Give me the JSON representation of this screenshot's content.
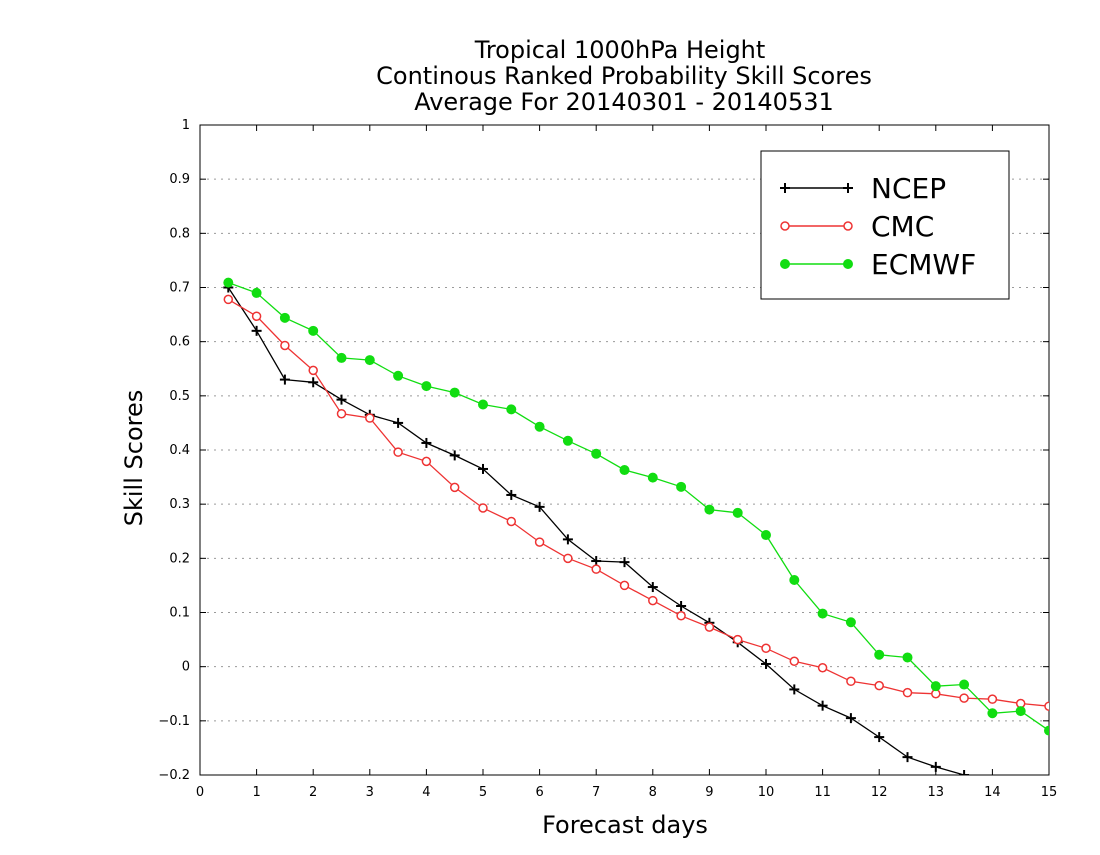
{
  "chart_data": {
    "type": "line",
    "title": [
      "Tropical 1000hPa Height",
      "Continous Ranked Probability Skill Scores",
      "Average For 20140301 - 20140531"
    ],
    "xlabel": "Forecast days",
    "ylabel": "Skill Scores",
    "xlim": [
      0,
      15
    ],
    "ylim": [
      -0.2,
      1
    ],
    "x_ticks": [
      "0",
      "1",
      "2",
      "3",
      "4",
      "5",
      "6",
      "7",
      "8",
      "9",
      "10",
      "11",
      "12",
      "13",
      "14",
      "15"
    ],
    "y_ticks": [
      "−0.2",
      "−0.1",
      "0",
      "0.1",
      "0.2",
      "0.3",
      "0.4",
      "0.5",
      "0.6",
      "0.7",
      "0.8",
      "0.9",
      "1"
    ],
    "grid": "horizontal dotted",
    "legend_position": "top-right",
    "series": [
      {
        "name": "NCEP",
        "color": "#000000",
        "marker": "plus",
        "x": [
          0.5,
          1,
          1.5,
          2,
          2.5,
          3,
          3.5,
          4,
          4.5,
          5,
          5.5,
          6,
          6.5,
          7,
          7.5,
          8,
          8.5,
          9,
          9.5,
          10,
          10.5,
          11,
          11.5,
          12,
          12.5,
          13,
          13.5
        ],
        "y": [
          0.7,
          0.62,
          0.53,
          0.525,
          0.493,
          0.465,
          0.45,
          0.413,
          0.39,
          0.365,
          0.317,
          0.295,
          0.235,
          0.195,
          0.193,
          0.147,
          0.112,
          0.081,
          0.045,
          0.005,
          -0.042,
          -0.072,
          -0.095,
          -0.13,
          -0.167,
          -0.185,
          -0.2
        ]
      },
      {
        "name": "CMC",
        "color": "#ee3333",
        "marker": "open-circle",
        "x": [
          0.5,
          1,
          1.5,
          2,
          2.5,
          3,
          3.5,
          4,
          4.5,
          5,
          5.5,
          6,
          6.5,
          7,
          7.5,
          8,
          8.5,
          9,
          9.5,
          10,
          10.5,
          11,
          11.5,
          12,
          12.5,
          13,
          13.5,
          14,
          14.5,
          15
        ],
        "y": [
          0.678,
          0.647,
          0.593,
          0.547,
          0.467,
          0.459,
          0.396,
          0.379,
          0.331,
          0.293,
          0.268,
          0.23,
          0.2,
          0.18,
          0.15,
          0.122,
          0.094,
          0.073,
          0.05,
          0.034,
          0.01,
          -0.002,
          -0.027,
          -0.035,
          -0.048,
          -0.05,
          -0.058,
          -0.06,
          -0.068,
          -0.073
        ]
      },
      {
        "name": "ECMWF",
        "color": "#11dd11",
        "marker": "filled-circle",
        "x": [
          0.5,
          1,
          1.5,
          2,
          2.5,
          3,
          3.5,
          4,
          4.5,
          5,
          5.5,
          6,
          6.5,
          7,
          7.5,
          8,
          8.5,
          9,
          9.5,
          10,
          10.5,
          11,
          11.5,
          12,
          12.5,
          13,
          13.5,
          14,
          14.5,
          15
        ],
        "y": [
          0.709,
          0.69,
          0.644,
          0.62,
          0.57,
          0.566,
          0.537,
          0.518,
          0.506,
          0.484,
          0.475,
          0.443,
          0.417,
          0.393,
          0.363,
          0.349,
          0.332,
          0.29,
          0.284,
          0.243,
          0.16,
          0.098,
          0.082,
          0.022,
          0.017,
          -0.036,
          -0.033,
          -0.086,
          -0.082,
          -0.118
        ]
      }
    ]
  }
}
